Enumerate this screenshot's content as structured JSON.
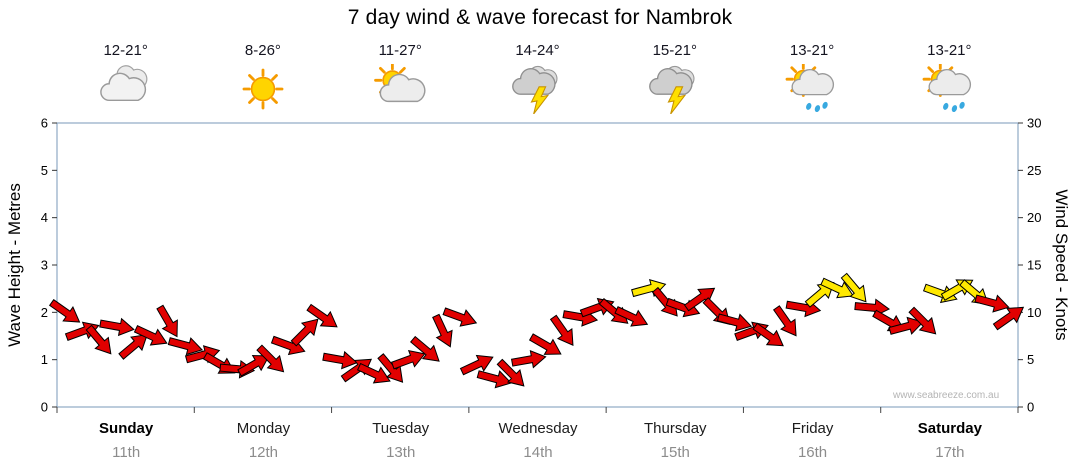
{
  "title": "7 day wind & wave forecast for Nambrok",
  "watermark": "www.seabreeze.com.au",
  "left_axis": {
    "label": "Wave Height - Metres",
    "min": 0,
    "max": 6,
    "ticks": [
      0,
      1,
      2,
      3,
      4,
      5,
      6
    ]
  },
  "right_axis": {
    "label": "Wind Speed - Knots",
    "min": 0,
    "max": 30,
    "ticks": [
      0,
      5,
      10,
      15,
      20,
      25,
      30
    ]
  },
  "days": [
    {
      "name": "Sunday",
      "date": "11th",
      "temp": "12-21°",
      "icon": "cloudy",
      "weekend": true
    },
    {
      "name": "Monday",
      "date": "12th",
      "temp": "8-26°",
      "icon": "sunny",
      "weekend": false
    },
    {
      "name": "Tuesday",
      "date": "13th",
      "temp": "11-27°",
      "icon": "sun-cloud",
      "weekend": false
    },
    {
      "name": "Wednesday",
      "date": "14th",
      "temp": "14-24°",
      "icon": "thunderstorm",
      "weekend": false
    },
    {
      "name": "Thursday",
      "date": "15th",
      "temp": "15-21°",
      "icon": "thunderstorm",
      "weekend": false
    },
    {
      "name": "Friday",
      "date": "16th",
      "temp": "13-21°",
      "icon": "sun-cloud-rain",
      "weekend": false
    },
    {
      "name": "Saturday",
      "date": "17th",
      "temp": "13-21°",
      "icon": "sun-cloud-rain",
      "weekend": true
    }
  ],
  "chart_data": {
    "type": "wind-arrows",
    "title": "7 day wind & wave forecast for Nambrok",
    "x_description": "3-hourly intervals from Sunday 11th to Saturday 17th (8 points per day)",
    "y_left_unit": "metres",
    "y_right_unit": "knots",
    "ylim_left": [
      0,
      6
    ],
    "ylim_right": [
      0,
      30
    ],
    "grid": false,
    "legend": "none",
    "strong_wind_threshold_knots": 12,
    "colors": {
      "normal": "#e10000",
      "strong": "#ffe800",
      "outline": "#000000",
      "axis": "#8fa9c4"
    },
    "series": [
      {
        "name": "Wind speed (knots)",
        "values": [
          10,
          8,
          7,
          8.5,
          6.5,
          7.5,
          9,
          6.5,
          5.5,
          4.5,
          4,
          4.5,
          5,
          6.5,
          8,
          9.5,
          5,
          4,
          3.5,
          4,
          5,
          6,
          8,
          9.5,
          4.5,
          3,
          3.5,
          5,
          6.5,
          8,
          9.5,
          10.5,
          10,
          9.5,
          12.5,
          11,
          10.5,
          11.5,
          10,
          9,
          8,
          7.5,
          9,
          10.5,
          12,
          12.5,
          12.5,
          10.5,
          9,
          8.5,
          9,
          12,
          12.5,
          12,
          11,
          9.5
        ],
        "directions_deg": [
          35,
          -20,
          50,
          10,
          -40,
          25,
          60,
          15,
          -15,
          30,
          5,
          -30,
          45,
          20,
          -45,
          35,
          10,
          -35,
          25,
          50,
          -20,
          40,
          65,
          20,
          -25,
          15,
          45,
          -10,
          30,
          55,
          10,
          -20,
          40,
          25,
          -15,
          50,
          20,
          -35,
          45,
          15,
          -20,
          35,
          55,
          10,
          -40,
          25,
          50,
          5,
          30,
          -15,
          45,
          20,
          -30,
          40,
          15,
          -35
        ]
      }
    ]
  }
}
